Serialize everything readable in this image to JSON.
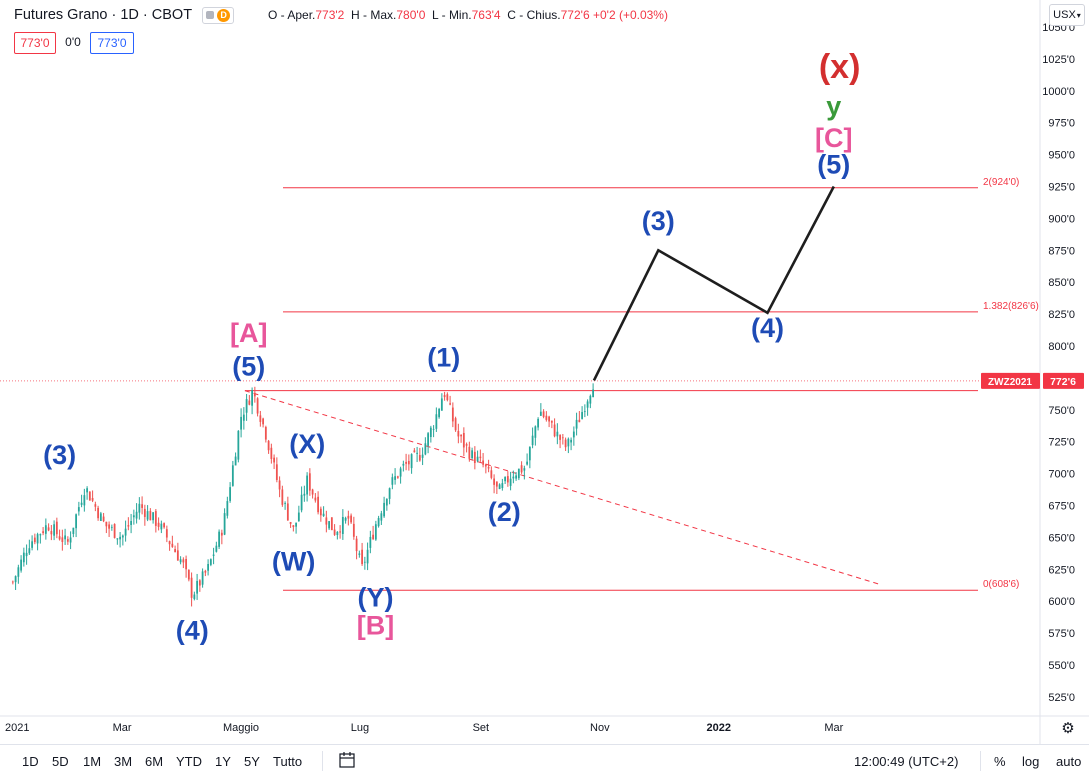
{
  "header": {
    "symbol": "Futures Grano · 1D · CBOT",
    "delay_badge": "D",
    "ohlc": {
      "open_label": "O - Aper.",
      "open": "773'2",
      "high_label": "H - Max.",
      "high": "780'0",
      "low_label": "L - Min.",
      "low": "763'4",
      "close_label": "C - Chius.",
      "close": "772'6",
      "change": "+0'2 (+0.03%)"
    },
    "sell_price": "773'0",
    "spread": "0'0",
    "buy_price": "773'0",
    "currency": "USX"
  },
  "chart_data": {
    "type": "candlestick",
    "price_unit": "US cents per bushel",
    "ylim": [
      5150,
      10550
    ],
    "y_ticks": [
      {
        "v": 10500,
        "label": "1050'0"
      },
      {
        "v": 10250,
        "label": "1025'0"
      },
      {
        "v": 10000,
        "label": "1000'0"
      },
      {
        "v": 9750,
        "label": "975'0"
      },
      {
        "v": 9500,
        "label": "950'0"
      },
      {
        "v": 9250,
        "label": "925'0"
      },
      {
        "v": 9000,
        "label": "900'0"
      },
      {
        "v": 8750,
        "label": "875'0"
      },
      {
        "v": 8500,
        "label": "850'0"
      },
      {
        "v": 8250,
        "label": "825'0"
      },
      {
        "v": 8000,
        "label": "800'0"
      },
      {
        "v": 7500,
        "label": "750'0"
      },
      {
        "v": 7250,
        "label": "725'0"
      },
      {
        "v": 7000,
        "label": "700'0"
      },
      {
        "v": 6750,
        "label": "675'0"
      },
      {
        "v": 6500,
        "label": "650'0"
      },
      {
        "v": 6250,
        "label": "625'0"
      },
      {
        "v": 6000,
        "label": "600'0"
      },
      {
        "v": 5750,
        "label": "575'0"
      },
      {
        "v": 5500,
        "label": "550'0"
      },
      {
        "v": 5250,
        "label": "525'0"
      }
    ],
    "x_labels": [
      "2021",
      "Mar",
      "Maggio",
      "Lug",
      "Set",
      "Nov",
      "2022",
      "Mar"
    ],
    "x_label_dates": [
      "2021-01-01",
      "2021-03-01",
      "2021-05-01",
      "2021-07-01",
      "2021-09-01",
      "2021-11-01",
      "2022-01-01",
      "2022-03-01"
    ],
    "price_path": [
      [
        "2021-01-04",
        6150
      ],
      [
        "2021-01-12",
        6450
      ],
      [
        "2021-01-22",
        6600
      ],
      [
        "2021-02-01",
        6450
      ],
      [
        "2021-02-10",
        6900
      ],
      [
        "2021-02-20",
        6600
      ],
      [
        "2021-03-01",
        6500
      ],
      [
        "2021-03-10",
        6750
      ],
      [
        "2021-03-20",
        6600
      ],
      [
        "2021-04-01",
        6300
      ],
      [
        "2021-04-06",
        6050
      ],
      [
        "2021-04-14",
        6250
      ],
      [
        "2021-04-22",
        6600
      ],
      [
        "2021-05-01",
        7450
      ],
      [
        "2021-05-07",
        7650
      ],
      [
        "2021-05-14",
        7300
      ],
      [
        "2021-05-21",
        6850
      ],
      [
        "2021-05-28",
        6550
      ],
      [
        "2021-06-04",
        6950
      ],
      [
        "2021-06-11",
        6700
      ],
      [
        "2021-06-18",
        6550
      ],
      [
        "2021-06-25",
        6650
      ],
      [
        "2021-07-02",
        6250
      ],
      [
        "2021-07-09",
        6600
      ],
      [
        "2021-07-16",
        6900
      ],
      [
        "2021-07-23",
        7050
      ],
      [
        "2021-08-01",
        7150
      ],
      [
        "2021-08-08",
        7400
      ],
      [
        "2021-08-13",
        7650
      ],
      [
        "2021-08-20",
        7300
      ],
      [
        "2021-08-27",
        7150
      ],
      [
        "2021-09-03",
        7050
      ],
      [
        "2021-09-10",
        6850
      ],
      [
        "2021-09-17",
        7000
      ],
      [
        "2021-09-24",
        7050
      ],
      [
        "2021-10-01",
        7500
      ],
      [
        "2021-10-08",
        7350
      ],
      [
        "2021-10-15",
        7200
      ],
      [
        "2021-10-22",
        7450
      ],
      [
        "2021-10-29",
        7730
      ]
    ],
    "last_price": {
      "symbol": "ZWZ2021",
      "value": 7727,
      "label": "772'6"
    },
    "fib_levels": [
      {
        "ratio": "2",
        "price": 9240,
        "label": "2(924'0)"
      },
      {
        "ratio": "1.382",
        "price": 8267,
        "label": "1.382(826'6)"
      },
      {
        "ratio": "0",
        "price": 6086,
        "label": "0(608'6)"
      }
    ],
    "support_line": {
      "start_date": "2021-05-03",
      "end_date": "2022-03-25",
      "price": 7650
    },
    "trendline_dashed": {
      "start": [
        "2021-05-03",
        7650
      ],
      "end": [
        "2022-03-25",
        6130
      ]
    },
    "projection_path": [
      [
        "2021-10-29",
        7730
      ],
      [
        "2021-12-01",
        8750
      ],
      [
        "2022-01-26",
        8260
      ],
      [
        "2022-03-01",
        9250
      ]
    ],
    "wave_labels": [
      {
        "text": "(3)",
        "date": "2021-01-28",
        "price": 7075,
        "color": "#1e4bb5"
      },
      {
        "text": "(4)",
        "date": "2021-04-06",
        "price": 5700,
        "color": "#1e4bb5"
      },
      {
        "text": "[A]",
        "date": "2021-05-05",
        "price": 8030,
        "color": "#e8569b"
      },
      {
        "text": "(5)",
        "date": "2021-05-05",
        "price": 7770,
        "color": "#1e4bb5"
      },
      {
        "text": "(X)",
        "date": "2021-06-04",
        "price": 7160,
        "color": "#1e4bb5"
      },
      {
        "text": "(W)",
        "date": "2021-05-28",
        "price": 6240,
        "color": "#1e4bb5"
      },
      {
        "text": "(Y)",
        "date": "2021-07-09",
        "price": 5960,
        "color": "#1e4bb5"
      },
      {
        "text": "[B]",
        "date": "2021-07-09",
        "price": 5740,
        "color": "#e8569b"
      },
      {
        "text": "(1)",
        "date": "2021-08-13",
        "price": 7840,
        "color": "#1e4bb5"
      },
      {
        "text": "(2)",
        "date": "2021-09-13",
        "price": 6630,
        "color": "#1e4bb5"
      },
      {
        "text": "(3)",
        "date": "2021-12-01",
        "price": 8910,
        "color": "#1e4bb5"
      },
      {
        "text": "(4)",
        "date": "2022-01-26",
        "price": 8070,
        "color": "#1e4bb5"
      },
      {
        "text": "(5)",
        "date": "2022-03-01",
        "price": 9350,
        "color": "#1e4bb5"
      },
      {
        "text": "[C]",
        "date": "2022-03-01",
        "price": 9560,
        "color": "#e8569b"
      },
      {
        "text": "y",
        "date": "2022-03-01",
        "price": 9810,
        "color": "#3a9a3a"
      },
      {
        "text": "(x)",
        "date": "2022-03-04",
        "price": 10100,
        "color": "#d32f2f"
      }
    ]
  },
  "bottom_bar": {
    "ranges": [
      "1D",
      "5D",
      "1M",
      "3M",
      "6M",
      "YTD",
      "1Y",
      "5Y",
      "Tutto"
    ],
    "clock": "12:00:49 (UTC+2)",
    "percent": "%",
    "log": "log",
    "auto": "auto"
  },
  "colors": {
    "up": "#26a69a",
    "down": "#ef5350",
    "fib": "#f23645",
    "label_blue": "#1e4bb5",
    "label_pink": "#e8569b",
    "label_green": "#3a9a3a",
    "label_red": "#d32f2f"
  }
}
